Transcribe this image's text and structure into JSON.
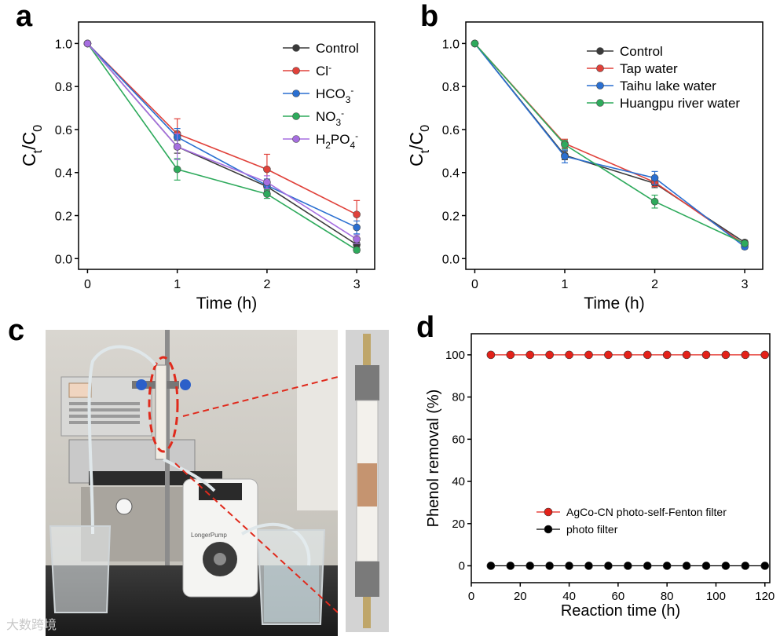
{
  "panel_labels": {
    "a": "a",
    "b": "b",
    "c": "c",
    "d": "d"
  },
  "colors": {
    "control": "#3a3a3a",
    "cl": "#e0413a",
    "hco3": "#2a6fd1",
    "no3": "#2eaa5c",
    "h2po4": "#a66ee0",
    "red_marker": "#e32119",
    "black_marker": "#000000"
  },
  "chart_data": [
    {
      "id": "a",
      "type": "line",
      "xlabel": "Time (h)",
      "ylabel": "Ct/C0",
      "x": [
        0,
        1,
        2,
        3
      ],
      "xlim": [
        -0.1,
        3.2
      ],
      "ylim": [
        -0.05,
        1.1
      ],
      "xticks": [
        "0",
        "1",
        "2",
        "3"
      ],
      "yticks": [
        "0.0",
        "0.2",
        "0.4",
        "0.6",
        "0.8",
        "1.0"
      ],
      "legend": "top-right",
      "series": [
        {
          "name": "Control",
          "color": "#3a3a3a",
          "values": [
            1.0,
            0.52,
            0.335,
            0.065
          ],
          "err": [
            0,
            0.03,
            0.02,
            0.01
          ]
        },
        {
          "name": "Cl-",
          "color": "#e0413a",
          "values": [
            1.0,
            0.58,
            0.415,
            0.205
          ],
          "err": [
            0,
            0.07,
            0.07,
            0.065
          ]
        },
        {
          "name": "HCO3-",
          "color": "#2a6fd1",
          "values": [
            1.0,
            0.565,
            0.34,
            0.145
          ],
          "err": [
            0,
            0.04,
            0.03,
            0.03
          ]
        },
        {
          "name": "NO3-",
          "color": "#2eaa5c",
          "values": [
            1.0,
            0.415,
            0.3,
            0.04
          ],
          "err": [
            0,
            0.05,
            0.02,
            0.01
          ]
        },
        {
          "name": "H2PO4-",
          "color": "#a66ee0",
          "values": [
            1.0,
            0.52,
            0.355,
            0.09
          ],
          "err": [
            0,
            0.06,
            0.03,
            0.02
          ]
        }
      ]
    },
    {
      "id": "b",
      "type": "line",
      "xlabel": "Time (h)",
      "ylabel": "Ct/C0",
      "x": [
        0,
        1,
        2,
        3
      ],
      "xlim": [
        -0.1,
        3.2
      ],
      "ylim": [
        -0.05,
        1.1
      ],
      "xticks": [
        "0",
        "1",
        "2",
        "3"
      ],
      "yticks": [
        "0.0",
        "0.2",
        "0.4",
        "0.6",
        "0.8",
        "1.0"
      ],
      "legend": "top-right",
      "series": [
        {
          "name": "Control",
          "color": "#3a3a3a",
          "values": [
            1.0,
            0.48,
            0.35,
            0.075
          ],
          "err": [
            0,
            0.02,
            0.02,
            0.01
          ]
        },
        {
          "name": "Tap water",
          "color": "#e0413a",
          "values": [
            1.0,
            0.535,
            0.355,
            0.065
          ],
          "err": [
            0,
            0.02,
            0.02,
            0.01
          ]
        },
        {
          "name": "Taihu lake water",
          "color": "#2a6fd1",
          "values": [
            1.0,
            0.475,
            0.375,
            0.055
          ],
          "err": [
            0,
            0.03,
            0.03,
            0.01
          ]
        },
        {
          "name": "Huangpu river water",
          "color": "#2eaa5c",
          "values": [
            1.0,
            0.53,
            0.265,
            0.07
          ],
          "err": [
            0,
            0.02,
            0.03,
            0.01
          ]
        }
      ]
    },
    {
      "id": "d",
      "type": "scatter",
      "xlabel": "Reaction time (h)",
      "ylabel": "Phenol removal (%)",
      "xlim": [
        0,
        122
      ],
      "ylim": [
        -8,
        110
      ],
      "xticks": [
        "0",
        "20",
        "40",
        "60",
        "80",
        "100",
        "120"
      ],
      "yticks": [
        "0",
        "20",
        "40",
        "60",
        "80",
        "100"
      ],
      "legend": "bottom-right",
      "x": [
        8,
        16,
        24,
        32,
        40,
        48,
        56,
        64,
        72,
        80,
        88,
        96,
        104,
        112,
        120
      ],
      "series": [
        {
          "name": "AgCo-CN photo-self-Fenton filter",
          "color": "#e32119",
          "values": [
            100,
            100,
            100,
            100,
            100,
            100,
            100,
            100,
            100,
            100,
            100,
            100,
            100,
            100,
            100
          ]
        },
        {
          "name": "photo filter",
          "color": "#000000",
          "values": [
            0,
            0,
            0,
            0,
            0,
            0,
            0,
            0,
            0,
            0,
            0,
            0,
            0,
            0,
            0
          ]
        }
      ]
    }
  ],
  "photo": {
    "device_label": "LongerPump",
    "watermark": "大数跨境"
  }
}
